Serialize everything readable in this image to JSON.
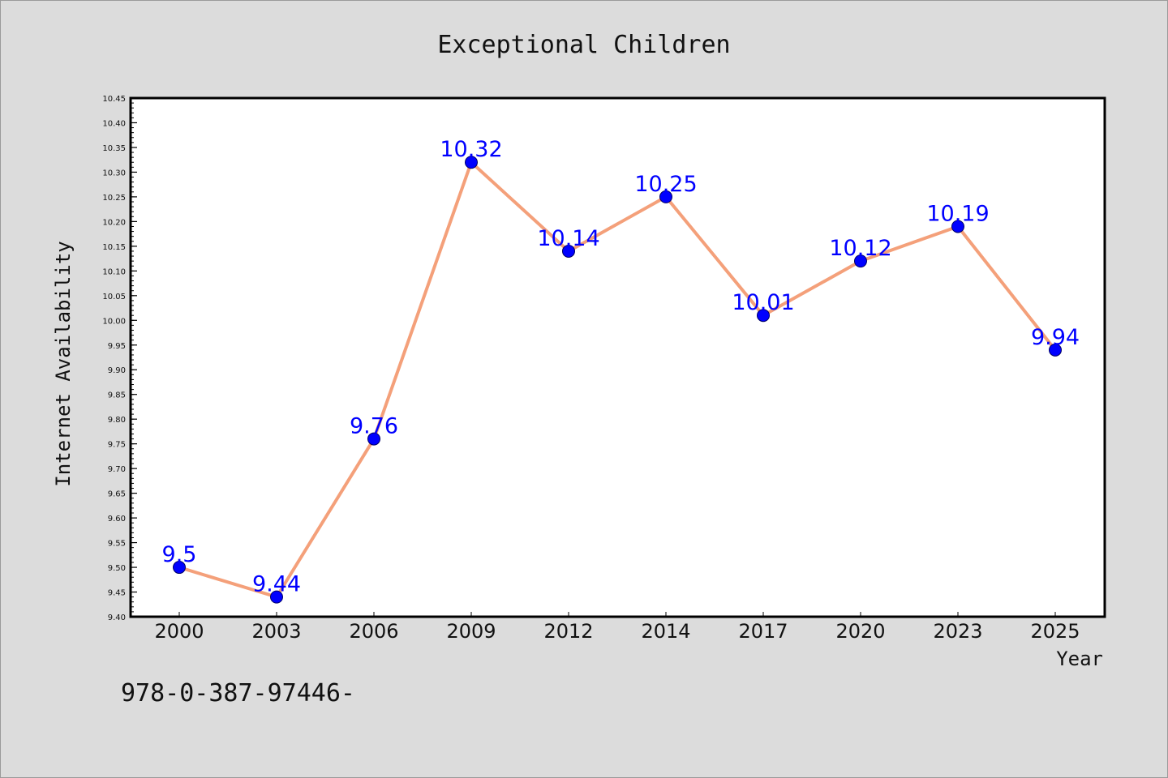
{
  "colors": {
    "background": "#dcdcdc",
    "plot_background": "#ffffff",
    "line": "#f4a07a",
    "marker": "#0000ff",
    "label": "#0000ff",
    "axis": "#000000"
  },
  "footer": {
    "text": "978-0-387-97446-"
  },
  "chart_data": {
    "type": "line",
    "title": "Exceptional Children",
    "xlabel": "Year",
    "ylabel": "Internet Availability",
    "categories": [
      "2000",
      "2003",
      "2006",
      "2009",
      "2012",
      "2014",
      "2017",
      "2020",
      "2023",
      "2025"
    ],
    "series": [
      {
        "values": [
          9.5,
          9.44,
          9.76,
          10.32,
          10.14,
          10.25,
          10.01,
          10.12,
          10.19,
          9.94
        ],
        "labels": [
          "9.5",
          "9.44",
          "9.76",
          "10.32",
          "10.14",
          "10.25",
          "10.01",
          "10.12",
          "10.19",
          "9.94"
        ]
      }
    ],
    "ylim": [
      9.4,
      10.45
    ],
    "yticks": [
      "9.40",
      "9.45",
      "9.50",
      "9.55",
      "9.60",
      "9.65",
      "9.70",
      "9.75",
      "9.80",
      "9.85",
      "9.90",
      "9.95",
      "10.00",
      "10.05",
      "10.10",
      "10.15",
      "10.20",
      "10.25",
      "10.30",
      "10.35",
      "10.40",
      "10.45"
    ],
    "grid": false,
    "legend": "none",
    "marker": "circle"
  }
}
